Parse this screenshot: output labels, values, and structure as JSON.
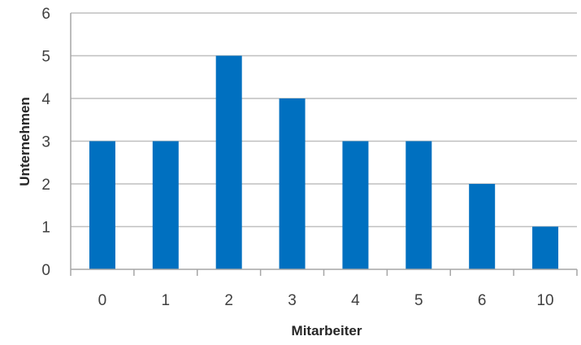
{
  "chart_data": {
    "type": "bar",
    "categories": [
      "0",
      "1",
      "2",
      "3",
      "4",
      "5",
      "6",
      "10"
    ],
    "values": [
      3,
      3,
      5,
      4,
      3,
      3,
      2,
      1
    ],
    "title": "",
    "xlabel": "Mitarbeiter",
    "ylabel": "Unternehmen",
    "ylim": [
      0,
      6
    ],
    "yticks": [
      "0",
      "1",
      "2",
      "3",
      "4",
      "5",
      "6"
    ],
    "grid": true,
    "legend": "none",
    "bar_color": "#0070c0"
  }
}
